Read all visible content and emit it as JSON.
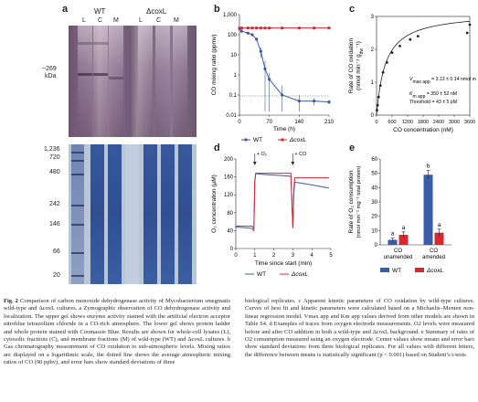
{
  "panel_a": {
    "letter": "a",
    "wt_label": "WT",
    "mut_label": "ΔcoxL",
    "lanes": [
      "L",
      "C",
      "M",
      "L",
      "C",
      "M"
    ],
    "size_marker": "~269",
    "size_unit": "kDa",
    "markers": [
      "1,236",
      "720",
      "480",
      "242",
      "146",
      "66",
      "20"
    ]
  },
  "chart_data": [
    {
      "id": "b",
      "type": "line",
      "letter": "b",
      "xlabel": "Time (h)",
      "ylabel": "CO mixing ratio (ppmv)",
      "xlim": [
        0,
        210
      ],
      "ylim_log": [
        0.01,
        1000
      ],
      "xticks": [
        0,
        70,
        140,
        210
      ],
      "yticks": [
        "0.01",
        "0.1",
        "1",
        "10",
        "100",
        "1,000"
      ],
      "dotted_line": 0.09,
      "series": [
        {
          "name": "WT",
          "color": "#3a5ba8",
          "x": [
            0,
            5,
            20,
            30,
            40,
            50,
            60,
            70,
            100,
            140,
            175,
            210
          ],
          "y": [
            200,
            150,
            120,
            100,
            60,
            15,
            2,
            0.6,
            0.1,
            0.05,
            0.05,
            0.045
          ],
          "err": [
            0,
            0,
            0,
            0,
            10,
            8,
            3,
            0.7,
            0.2,
            0.05,
            0.02,
            0.01
          ]
        },
        {
          "name": "ΔcoxL",
          "color": "#d9272e",
          "x": [
            0,
            5,
            20,
            30,
            40,
            50,
            60,
            70,
            100,
            140,
            175,
            210
          ],
          "y": [
            210,
            215,
            215,
            215,
            215,
            215,
            215,
            215,
            215,
            215,
            215,
            215
          ]
        }
      ]
    },
    {
      "id": "c",
      "type": "scatter",
      "letter": "c",
      "xlabel": "CO concentration (nM)",
      "ylabel_line1": "Rate of CO oxidation",
      "ylabel_line2": "(nmol min⁻¹ g",
      "ylabel_sub": "dw",
      "ylabel_end": "⁻¹)",
      "xticks": [
        "0",
        "600",
        "1200",
        "1800",
        "2400",
        "3000",
        "3600"
      ],
      "ylim": [
        0,
        3
      ],
      "yticks": [
        0,
        1,
        2,
        3
      ],
      "points_x": [
        15,
        40,
        80,
        150,
        250,
        400,
        600,
        900,
        1300,
        1600,
        3500,
        3600
      ],
      "points_y": [
        0.15,
        0.3,
        0.55,
        0.9,
        1.3,
        1.6,
        1.9,
        2.1,
        2.3,
        2.4,
        2.5,
        2.75
      ],
      "vmax": 3.13,
      "km": 350,
      "ann_vmax": "V",
      "ann_vmax_sub": "max app",
      "ann_vmax_val": " = 3.13 ± 0.14 nmol min⁻¹ g",
      "ann_vmax_sub2": "dw",
      "ann_vmax_end": "⁻¹",
      "ann_km": "K",
      "ann_km_sub": "m app",
      "ann_km_val": " = 350 ± 52 nM",
      "ann_thr": "Threshold = 43 ± 5 pM"
    },
    {
      "id": "d",
      "type": "line",
      "letter": "d",
      "xlabel": "Time since start (min)",
      "ylabel": "O₂ concentration (μM)",
      "xlim": [
        0,
        5
      ],
      "ylim": [
        0,
        200
      ],
      "xticks": [
        0,
        1,
        2,
        3,
        4,
        5
      ],
      "yticks": [
        0,
        40,
        80,
        120,
        160,
        200
      ],
      "ann_o2": "+ O₂",
      "ann_co": "+ CO",
      "series": [
        {
          "name": "WT",
          "color": "#3a5ba8",
          "x": [
            0,
            0.3,
            0.6,
            0.85,
            0.95,
            1.0,
            1.05,
            1.1,
            1.3,
            1.6,
            2.0,
            2.4,
            2.7,
            2.9,
            3.0,
            3.05,
            3.1,
            3.3,
            3.6,
            4.0,
            4.5,
            4.9
          ],
          "y": [
            48,
            47,
            46,
            45,
            40,
            150,
            168,
            167,
            166,
            165,
            164,
            163,
            162,
            161,
            45,
            120,
            148,
            147,
            145,
            142,
            138,
            135
          ]
        },
        {
          "name": "ΔcoxL",
          "color": "#d9272e",
          "x": [
            0,
            0.3,
            0.6,
            0.85,
            0.95,
            1.0,
            1.05,
            1.1,
            1.3,
            1.6,
            2.0,
            2.4,
            2.7,
            2.9,
            3.0,
            3.05,
            3.1,
            3.3,
            3.6,
            4.0,
            4.5,
            4.9
          ],
          "y": [
            50,
            50,
            50,
            50,
            45,
            152,
            168,
            168,
            168,
            168,
            168,
            168,
            168,
            168,
            48,
            130,
            158,
            158,
            158,
            158,
            158,
            158
          ]
        }
      ]
    },
    {
      "id": "e",
      "type": "bar",
      "letter": "e",
      "ylabel_line1": "Rate of O₂ consumption",
      "ylabel_line2": "(nmol min⁻¹ mg⁻¹ total protein)",
      "categories_line1": [
        "CO",
        "CO"
      ],
      "categories_line2": [
        "unamended",
        "amended"
      ],
      "ylim": [
        0,
        60
      ],
      "yticks": [
        0,
        10,
        20,
        30,
        40,
        50,
        60
      ],
      "series": [
        {
          "name": "WT",
          "color": "#3a5ba8",
          "values": [
            3.5,
            49
          ],
          "err": [
            1.2,
            3
          ],
          "letters": [
            "a",
            "b"
          ]
        },
        {
          "name": "ΔcoxL",
          "color": "#d9272e",
          "values": [
            7,
            8.5
          ],
          "err": [
            2,
            2.5
          ],
          "letters": [
            "a",
            "a"
          ]
        }
      ]
    }
  ],
  "caption": {
    "fig_label": "Fig. 2",
    "left": "Comparison of carbon monoxide dehydrogenase activity of Mycobacterium smegmatis wild-type and ΔcoxL cultures. a Zymographic observation of CO dehydrogenase activity and localization. The upper gel shows enzyme activity stained with the artificial electron acceptor nitroblue tetrazolium chloride in a CO-rich atmosphere. The lower gel shows protein ladder and whole protein stained with Coomassie Blue. Results are shown for whole-cell lysates (L), cytosolic fractions (C), and membrane fractions (M) of wild-type (WT) and ΔcoxL cultures. b Gas chromatography measurement of CO oxidation to sub-atmospheric levels. Mixing ratios are displayed on a logarithmic scale, the dotted line shows the average atmospheric mixing ratios of CO (90 ppbv), and error bars show standard deviations of three",
    "right": "biological replicates. c Apparent kinetic parameters of CO oxidation by wild-type cultures. Curves of best fit and kinetic parameters were calculated based on a Michaelis–Menten non-linear regression model. Vmax app and Km app values derived from other models are shown in Table S4. d Examples of traces from oxygen electrode measurements. O2 levels were measured before and after CO addition in both a wild-type and ΔcoxL background. e Summary of rates of O2 consumption measured using an oxygen electrode. Center values show means and error bars show standard deviations from three biological replicates. For all values with different letters, the difference between means is statistically significant (p < 0.001) based on Student’s t-tests"
  }
}
